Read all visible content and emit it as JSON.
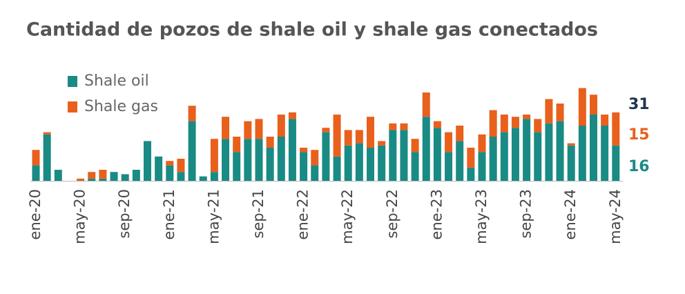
{
  "chart_data": {
    "type": "bar",
    "stacked": true,
    "title": "Cantidad de pozos de shale oil y shale gas conectados",
    "categories": [
      "ene-20",
      null,
      null,
      null,
      "may-20",
      null,
      null,
      null,
      "sep-20",
      null,
      null,
      null,
      "ene-21",
      null,
      null,
      null,
      "may-21",
      null,
      null,
      null,
      "sep-21",
      null,
      null,
      null,
      "ene-22",
      null,
      null,
      null,
      "may-22",
      null,
      null,
      null,
      "sep-22",
      null,
      null,
      null,
      "ene-23",
      null,
      null,
      null,
      "may-23",
      null,
      null,
      null,
      "sep-23",
      null,
      null,
      null,
      "ene-24",
      null,
      null,
      null,
      "may-24"
    ],
    "series": [
      {
        "name": "Shale oil",
        "color": "#1a8a85",
        "values": [
          7,
          21,
          5,
          0,
          0,
          1,
          1,
          4,
          3,
          5,
          18,
          11,
          7,
          4,
          27,
          2,
          4,
          19,
          13,
          19,
          19,
          15,
          20,
          28,
          13,
          7,
          22,
          11,
          16,
          17,
          15,
          16,
          23,
          23,
          13,
          29,
          24,
          13,
          18,
          6,
          13,
          20,
          22,
          24,
          28,
          22,
          26,
          27,
          16,
          25,
          30,
          25,
          16
        ]
      },
      {
        "name": "Shale gas",
        "color": "#e8601c",
        "values": [
          7,
          1,
          0,
          0,
          1,
          3,
          4,
          0,
          0,
          0,
          0,
          0,
          2,
          6,
          7,
          0,
          15,
          10,
          7,
          8,
          9,
          5,
          10,
          3,
          2,
          7,
          2,
          19,
          7,
          6,
          14,
          2,
          3,
          3,
          6,
          11,
          3,
          9,
          7,
          9,
          8,
          12,
          8,
          5,
          2,
          6,
          11,
          8,
          1,
          17,
          9,
          5,
          15
        ]
      }
    ],
    "annotations": [
      "31"
    ],
    "legend": "upper left"
  }
}
